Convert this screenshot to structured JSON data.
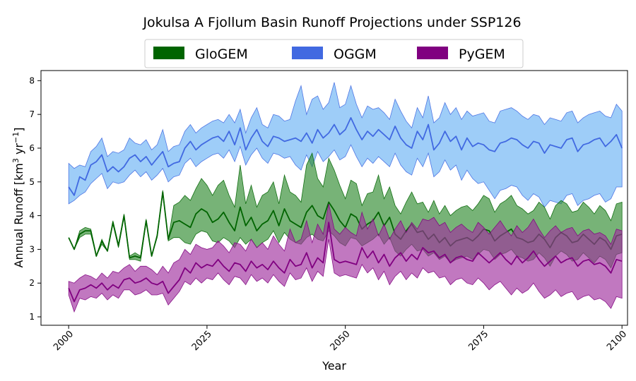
{
  "chart_data": {
    "type": "area",
    "title": "Jokulsa A Fjollum Basin Runoff Projections under SSP126",
    "xlabel": "Year",
    "ylabel": "Annual Runoff [km³ yr⁻¹]",
    "ylabel_main": "Annual Runoff [km",
    "ylabel_sup1": "3",
    "ylabel_mid": " yr",
    "ylabel_sup2": "−1",
    "ylabel_end": "]",
    "xlim": [
      1995,
      2101
    ],
    "ylim": [
      0.75,
      8.3
    ],
    "xticks": [
      2000,
      2025,
      2050,
      2075,
      2100
    ],
    "yticks": [
      1,
      2,
      3,
      4,
      5,
      6,
      7,
      8
    ],
    "legend": {
      "placement": "top-center",
      "entries": [
        "GloGEM",
        "OGGM",
        "PyGEM"
      ]
    },
    "colors": {
      "GloGEM_fill": "#2e8b2e",
      "GloGEM_line": "#006400",
      "OGGM_fill": "#6ab2f5",
      "OGGM_line": "#4169e1",
      "PyGEM_fill": "#a0309e",
      "PyGEM_line": "#800080"
    },
    "series": [
      {
        "name": "OGGM",
        "x_start": 2000,
        "mean": [
          4.85,
          4.6,
          5.15,
          5.05,
          5.5,
          5.6,
          5.8,
          5.3,
          5.45,
          5.3,
          5.45,
          5.7,
          5.8,
          5.6,
          5.75,
          5.5,
          5.7,
          5.9,
          5.45,
          5.55,
          5.6,
          6.0,
          6.2,
          5.95,
          6.1,
          6.2,
          6.3,
          6.35,
          6.2,
          6.5,
          6.1,
          6.6,
          5.95,
          6.3,
          6.55,
          6.2,
          6.05,
          6.35,
          6.3,
          6.2,
          6.25,
          6.3,
          6.2,
          6.45,
          6.15,
          6.55,
          6.3,
          6.45,
          6.7,
          6.4,
          6.55,
          6.9,
          6.55,
          6.25,
          6.5,
          6.35,
          6.55,
          6.4,
          6.25,
          6.65,
          6.3,
          6.1,
          6.0,
          6.5,
          6.25,
          6.7,
          5.95,
          6.15,
          6.5,
          6.2,
          6.35,
          5.95,
          6.3,
          6.05,
          6.15,
          6.1,
          5.95,
          5.9,
          6.15,
          6.2,
          6.3,
          6.25,
          6.1,
          6.0,
          6.2,
          6.15,
          5.85,
          6.1,
          6.05,
          6.0,
          6.25,
          6.3,
          5.9,
          6.1,
          6.15,
          6.25,
          6.3,
          6.05,
          6.2,
          6.4,
          6.0
        ],
        "upper": [
          5.55,
          5.4,
          5.5,
          5.45,
          5.9,
          6.05,
          6.3,
          5.75,
          5.9,
          5.85,
          5.95,
          6.3,
          6.15,
          6.1,
          6.25,
          5.95,
          6.1,
          6.55,
          5.9,
          6.05,
          6.1,
          6.5,
          6.7,
          6.45,
          6.6,
          6.7,
          6.8,
          6.85,
          6.75,
          7.0,
          6.75,
          7.15,
          6.45,
          6.9,
          7.2,
          6.7,
          6.6,
          7.0,
          6.95,
          6.8,
          6.85,
          7.4,
          7.85,
          7.0,
          7.45,
          7.55,
          7.15,
          7.35,
          7.95,
          7.2,
          7.3,
          7.85,
          7.3,
          6.9,
          7.25,
          7.15,
          7.2,
          7.05,
          6.85,
          7.45,
          7.1,
          6.8,
          6.6,
          7.2,
          6.9,
          7.55,
          6.75,
          6.9,
          7.35,
          7.0,
          7.2,
          6.85,
          7.1,
          6.95,
          7.0,
          7.05,
          6.8,
          6.75,
          7.1,
          7.15,
          7.2,
          7.1,
          6.95,
          6.85,
          7.0,
          6.95,
          6.7,
          6.9,
          6.85,
          6.8,
          7.05,
          7.1,
          6.75,
          6.9,
          7.0,
          7.05,
          7.1,
          6.95,
          6.9,
          7.3,
          7.1
        ],
        "lower": [
          4.35,
          4.45,
          4.6,
          4.7,
          4.95,
          5.1,
          5.25,
          4.8,
          5.0,
          4.95,
          5.0,
          5.2,
          5.35,
          5.15,
          5.3,
          5.05,
          5.2,
          5.4,
          5.0,
          5.15,
          5.2,
          5.55,
          5.7,
          5.45,
          5.6,
          5.7,
          5.8,
          5.85,
          5.7,
          5.95,
          5.6,
          6.05,
          5.5,
          5.8,
          6.0,
          5.7,
          5.55,
          5.85,
          5.8,
          5.7,
          5.75,
          5.5,
          5.35,
          5.8,
          5.45,
          5.9,
          5.6,
          5.75,
          5.95,
          5.65,
          5.75,
          6.1,
          5.75,
          5.45,
          5.7,
          5.55,
          5.75,
          5.6,
          5.45,
          5.85,
          5.5,
          5.3,
          5.2,
          5.7,
          5.45,
          5.85,
          5.15,
          5.3,
          5.65,
          5.35,
          5.5,
          5.05,
          5.35,
          5.1,
          4.95,
          5.0,
          4.75,
          4.5,
          4.75,
          4.8,
          4.9,
          4.85,
          4.6,
          4.45,
          4.65,
          4.55,
          4.25,
          4.45,
          4.4,
          4.35,
          4.6,
          4.65,
          4.3,
          4.45,
          4.5,
          4.6,
          4.65,
          4.4,
          4.5,
          4.85,
          4.85
        ]
      },
      {
        "name": "GloGEM",
        "x_start": 2000,
        "mean": [
          3.35,
          3.0,
          3.45,
          3.55,
          3.55,
          2.8,
          3.25,
          2.95,
          3.8,
          3.1,
          4.0,
          2.75,
          2.8,
          2.75,
          3.85,
          2.8,
          3.4,
          4.7,
          3.3,
          3.8,
          3.85,
          3.75,
          3.65,
          4.05,
          4.2,
          4.1,
          3.8,
          3.9,
          4.1,
          3.8,
          3.55,
          4.25,
          3.7,
          3.95,
          3.55,
          3.75,
          3.85,
          4.15,
          3.7,
          4.2,
          3.85,
          3.75,
          3.65,
          4.1,
          4.3,
          4.0,
          3.9,
          4.4,
          4.15,
          3.85,
          3.65,
          4.05,
          3.95,
          3.6,
          3.75,
          3.85,
          4.1,
          3.7,
          3.95,
          3.45,
          3.3,
          3.55,
          3.75,
          3.5,
          3.55,
          3.3,
          3.45,
          3.2,
          3.35,
          3.1,
          3.25,
          3.3,
          3.35,
          3.25,
          3.4,
          3.6,
          3.55,
          3.25,
          3.4,
          3.5,
          3.6,
          3.35,
          3.3,
          3.2,
          3.25,
          3.45,
          3.3,
          3.05,
          3.35,
          3.5,
          3.4,
          3.2,
          3.25,
          3.45,
          3.3,
          3.15,
          3.35,
          3.25,
          3.0,
          3.4,
          3.45
        ],
        "upper": [
          3.35,
          3.0,
          3.55,
          3.65,
          3.6,
          2.8,
          3.3,
          2.95,
          3.85,
          3.15,
          4.05,
          2.8,
          2.9,
          2.8,
          3.9,
          2.8,
          3.45,
          4.75,
          3.3,
          4.3,
          4.4,
          4.6,
          4.45,
          4.8,
          5.1,
          4.9,
          4.6,
          4.9,
          5.05,
          4.6,
          4.25,
          5.5,
          4.35,
          4.9,
          4.25,
          4.6,
          4.7,
          5.0,
          4.35,
          5.2,
          4.7,
          4.6,
          4.4,
          5.5,
          5.85,
          5.1,
          4.85,
          5.7,
          5.35,
          4.9,
          4.5,
          5.05,
          4.95,
          4.3,
          4.65,
          4.7,
          5.2,
          4.5,
          4.85,
          4.3,
          4.05,
          4.4,
          4.7,
          4.35,
          4.4,
          4.1,
          4.45,
          4.05,
          4.3,
          4.0,
          4.15,
          4.25,
          4.3,
          4.15,
          4.35,
          4.6,
          4.5,
          4.1,
          4.35,
          4.45,
          4.6,
          4.3,
          4.2,
          4.05,
          4.15,
          4.4,
          4.25,
          3.9,
          4.3,
          4.45,
          4.35,
          4.1,
          4.15,
          4.4,
          4.25,
          4.05,
          4.3,
          4.15,
          3.85,
          4.35,
          4.4
        ],
        "lower": [
          3.35,
          3.0,
          3.35,
          3.45,
          3.45,
          2.8,
          3.15,
          2.95,
          3.75,
          3.05,
          3.95,
          2.7,
          2.7,
          2.65,
          3.8,
          2.8,
          3.35,
          4.65,
          3.25,
          3.35,
          3.35,
          3.2,
          3.15,
          3.45,
          3.55,
          3.5,
          3.25,
          3.2,
          3.35,
          3.25,
          3.05,
          3.35,
          3.15,
          3.3,
          3.05,
          3.2,
          3.3,
          3.55,
          3.2,
          3.5,
          3.3,
          3.2,
          3.15,
          3.35,
          3.45,
          3.3,
          3.25,
          3.55,
          3.4,
          3.2,
          3.1,
          3.35,
          3.3,
          3.1,
          3.2,
          3.3,
          3.45,
          3.15,
          3.35,
          2.95,
          2.8,
          3.0,
          3.15,
          2.95,
          3.0,
          2.8,
          2.9,
          2.7,
          2.8,
          2.6,
          2.7,
          2.75,
          2.8,
          2.7,
          2.85,
          3.0,
          2.95,
          2.7,
          2.85,
          2.9,
          3.0,
          2.8,
          2.75,
          2.65,
          2.7,
          2.9,
          2.75,
          2.5,
          2.8,
          2.95,
          2.85,
          2.65,
          2.7,
          2.9,
          2.75,
          2.6,
          2.8,
          2.7,
          2.45,
          2.85,
          2.9
        ]
      },
      {
        "name": "PyGEM",
        "x_start": 2000,
        "mean": [
          1.85,
          1.45,
          1.8,
          1.85,
          1.95,
          1.85,
          2.0,
          1.8,
          1.95,
          1.85,
          2.1,
          2.15,
          2.0,
          2.05,
          2.15,
          2.0,
          1.95,
          2.05,
          1.7,
          1.9,
          2.1,
          2.45,
          2.3,
          2.6,
          2.45,
          2.55,
          2.5,
          2.7,
          2.5,
          2.35,
          2.6,
          2.55,
          2.35,
          2.65,
          2.45,
          2.55,
          2.4,
          2.65,
          2.45,
          2.3,
          2.7,
          2.5,
          2.55,
          2.9,
          2.45,
          2.75,
          2.6,
          3.8,
          2.7,
          2.6,
          2.65,
          2.6,
          2.55,
          3.05,
          2.75,
          2.95,
          2.6,
          2.85,
          2.5,
          2.75,
          2.9,
          2.65,
          2.85,
          2.7,
          3.05,
          2.9,
          2.95,
          2.75,
          2.85,
          2.6,
          2.75,
          2.8,
          2.7,
          2.65,
          2.9,
          2.75,
          2.6,
          2.75,
          2.9,
          2.7,
          2.55,
          2.8,
          2.6,
          2.75,
          2.95,
          2.7,
          2.5,
          2.65,
          2.8,
          2.6,
          2.7,
          2.75,
          2.5,
          2.65,
          2.7,
          2.55,
          2.6,
          2.5,
          2.3,
          2.7,
          2.65
        ],
        "upper": [
          2.05,
          2.0,
          2.15,
          2.25,
          2.2,
          2.1,
          2.3,
          2.15,
          2.35,
          2.3,
          2.45,
          2.55,
          2.35,
          2.5,
          2.5,
          2.4,
          2.25,
          2.5,
          2.3,
          2.6,
          2.7,
          3.0,
          2.85,
          3.15,
          3.05,
          3.0,
          3.05,
          3.25,
          3.1,
          2.9,
          3.2,
          3.15,
          2.95,
          3.3,
          3.05,
          3.2,
          3.0,
          3.4,
          3.15,
          2.95,
          3.6,
          3.2,
          3.3,
          3.85,
          3.2,
          3.75,
          3.45,
          4.35,
          3.6,
          3.45,
          3.65,
          3.5,
          3.4,
          4.1,
          3.6,
          3.9,
          3.4,
          3.75,
          3.3,
          3.6,
          3.85,
          3.5,
          3.8,
          3.6,
          3.9,
          3.85,
          3.95,
          3.7,
          3.8,
          3.5,
          3.65,
          3.75,
          3.6,
          3.5,
          3.8,
          3.65,
          3.45,
          3.65,
          3.85,
          3.6,
          3.4,
          3.7,
          3.5,
          3.65,
          3.9,
          3.6,
          3.35,
          3.55,
          3.7,
          3.5,
          3.6,
          3.65,
          3.4,
          3.55,
          3.6,
          3.45,
          3.5,
          3.4,
          3.15,
          3.6,
          3.55
        ],
        "lower": [
          1.65,
          1.15,
          1.55,
          1.5,
          1.6,
          1.55,
          1.7,
          1.5,
          1.65,
          1.55,
          1.8,
          1.8,
          1.65,
          1.7,
          1.8,
          1.65,
          1.65,
          1.7,
          1.35,
          1.55,
          1.75,
          2.05,
          1.95,
          2.15,
          2.0,
          2.15,
          2.1,
          2.3,
          2.1,
          1.95,
          2.2,
          2.15,
          1.95,
          2.25,
          2.05,
          2.15,
          2.0,
          2.25,
          2.05,
          1.9,
          2.3,
          2.1,
          2.15,
          2.45,
          2.05,
          2.35,
          2.2,
          3.3,
          2.3,
          2.2,
          2.25,
          2.2,
          2.15,
          2.55,
          2.3,
          2.45,
          2.1,
          2.35,
          1.95,
          2.2,
          2.35,
          2.1,
          2.3,
          2.15,
          2.45,
          2.3,
          2.35,
          2.15,
          2.2,
          1.95,
          2.1,
          2.15,
          2.0,
          1.95,
          2.15,
          2.0,
          1.8,
          1.95,
          2.05,
          1.85,
          1.65,
          1.85,
          1.7,
          1.8,
          2.0,
          1.75,
          1.55,
          1.65,
          1.8,
          1.6,
          1.7,
          1.75,
          1.5,
          1.6,
          1.65,
          1.5,
          1.55,
          1.45,
          1.25,
          1.6,
          1.55
        ]
      }
    ]
  }
}
